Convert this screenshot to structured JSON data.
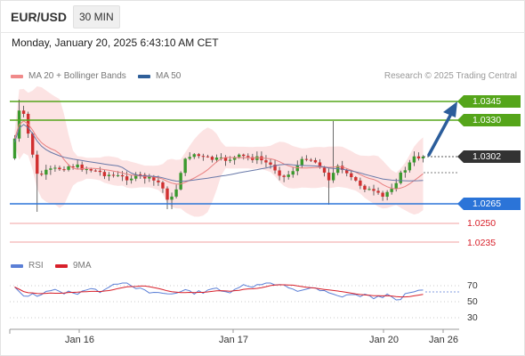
{
  "header": {
    "symbol": "EUR/USD",
    "timeframe": "30 MIN"
  },
  "datetime": "Monday, January 20, 2025 6:43:10 AM CET",
  "legend": {
    "bb": {
      "label": "MA 20 + Bollinger Bands",
      "color": "#f08a8a"
    },
    "ma50": {
      "label": "MA 50",
      "color": "#2f5f99"
    },
    "credit": "Research © 2025 Trading Central"
  },
  "levels": {
    "r2": "1.0345",
    "r1": "1.0330",
    "last": "1.0302",
    "s1": "1.0265",
    "s2": "1.0250",
    "s3": "1.0235"
  },
  "colors": {
    "resistance": "#55a51a",
    "support": "#2b74d8",
    "last": "#333333",
    "red": "#d8202a",
    "arrow": "#2b5d9b"
  },
  "rsi": {
    "label": "RSI",
    "ma_label": "9MA",
    "color": "#5b7fd6",
    "ma_color": "#d8202a",
    "ticks": [
      "70",
      "50",
      "30"
    ]
  },
  "xaxis": [
    "Jan 16",
    "Jan 17",
    "Jan 20",
    "Jan 26"
  ]
}
